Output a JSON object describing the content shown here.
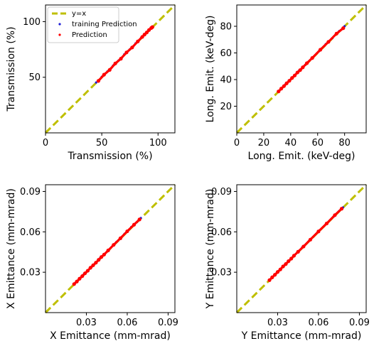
{
  "chart_data": [
    {
      "type": "scatter",
      "xlabel": "Transmission (%)",
      "ylabel": "Transmission (%)",
      "xlim": [
        0,
        115
      ],
      "ylim": [
        0,
        115
      ],
      "xticks": [
        0,
        50,
        100
      ],
      "yticks": [
        50,
        100
      ],
      "xtick_labels": [
        "0",
        "50",
        "100"
      ],
      "ytick_labels": [
        "50",
        "100"
      ],
      "grid": false,
      "legend": {
        "placement": "top-left",
        "entries": [
          "y=x",
          "training Prediction",
          "Prediction"
        ]
      },
      "reference_line": {
        "name": "y=x",
        "color": "#bfbf00",
        "style": "dashed"
      },
      "series": [
        {
          "name": "training Prediction",
          "color": "#1f1fd6",
          "x": [
            45,
            50,
            55,
            60,
            65,
            70,
            75,
            80,
            85,
            90,
            95
          ],
          "y": [
            45.3,
            50.4,
            55.2,
            60.5,
            65.1,
            70.6,
            75.2,
            80.4,
            85.5,
            90.2,
            95.3
          ]
        },
        {
          "name": "Prediction",
          "color": "#ff0000",
          "x": [
            47,
            52,
            57,
            62,
            67,
            72,
            77,
            82,
            86,
            88,
            90,
            92,
            94,
            95
          ],
          "y": [
            46.7,
            52.3,
            56.6,
            62.4,
            66.7,
            72.3,
            76.8,
            82.2,
            86.3,
            88.4,
            90.3,
            92.5,
            94.3,
            95.1
          ]
        }
      ]
    },
    {
      "type": "scatter",
      "xlabel": "Long. Emit. (keV-deg)",
      "ylabel": "Long. Emit. (keV-deg)",
      "xlim": [
        0,
        96
      ],
      "ylim": [
        0,
        96
      ],
      "xticks": [
        0,
        20,
        40,
        60,
        80
      ],
      "yticks": [
        20,
        40,
        60,
        80
      ],
      "xtick_labels": [
        "0",
        "20",
        "40",
        "60",
        "80"
      ],
      "ytick_labels": [
        "20",
        "40",
        "60",
        "80"
      ],
      "grid": false,
      "reference_line": {
        "name": "y=x",
        "color": "#bfbf00",
        "style": "dashed"
      },
      "series": [
        {
          "name": "training Prediction",
          "color": "#1f1fd6",
          "x": [
            31,
            36,
            41,
            46,
            51,
            56,
            61,
            66,
            71,
            76,
            80
          ],
          "y": [
            31.2,
            36.3,
            41.1,
            46.4,
            51.2,
            56.5,
            61.3,
            66.6,
            71.2,
            76.4,
            80.1
          ]
        },
        {
          "name": "Prediction",
          "color": "#ff0000",
          "x": [
            31,
            33,
            35,
            37,
            39,
            41,
            43,
            45,
            47,
            49,
            52,
            56,
            62,
            68,
            74,
            79
          ],
          "y": [
            31.1,
            33.2,
            35.1,
            37.2,
            39.1,
            41.2,
            43.1,
            45.3,
            47.1,
            49.2,
            52.3,
            56.2,
            62.4,
            68.3,
            74.5,
            78.6
          ]
        }
      ]
    },
    {
      "type": "scatter",
      "xlabel": "X Emittance (mm-mrad)",
      "ylabel": "X Emittance (mm-mrad)",
      "xlim": [
        0.0,
        0.095
      ],
      "ylim": [
        0.0,
        0.095
      ],
      "xticks": [
        0.03,
        0.06,
        0.09
      ],
      "yticks": [
        0.03,
        0.06,
        0.09
      ],
      "xtick_labels": [
        "0.03",
        "0.06",
        "0.09"
      ],
      "ytick_labels": [
        "0.03",
        "0.06",
        "0.09"
      ],
      "grid": false,
      "reference_line": {
        "name": "y=x",
        "color": "#bfbf00",
        "style": "dashed"
      },
      "series": [
        {
          "name": "training Prediction",
          "color": "#1f1fd6",
          "x": [
            0.022,
            0.028,
            0.034,
            0.04,
            0.046,
            0.052,
            0.058,
            0.063,
            0.067,
            0.07
          ],
          "y": [
            0.0222,
            0.0283,
            0.0342,
            0.0404,
            0.0463,
            0.0524,
            0.0585,
            0.0636,
            0.0672,
            0.0703
          ]
        },
        {
          "name": "Prediction",
          "color": "#ff0000",
          "x": [
            0.021,
            0.023,
            0.025,
            0.027,
            0.029,
            0.031,
            0.033,
            0.035,
            0.037,
            0.039,
            0.041,
            0.043,
            0.046,
            0.05,
            0.055,
            0.06,
            0.065,
            0.069
          ],
          "y": [
            0.0212,
            0.0231,
            0.0252,
            0.0271,
            0.0292,
            0.0311,
            0.0333,
            0.0352,
            0.0371,
            0.0392,
            0.0413,
            0.0431,
            0.0462,
            0.0503,
            0.0552,
            0.0604,
            0.0653,
            0.0692
          ]
        }
      ]
    },
    {
      "type": "scatter",
      "xlabel": "Y Emittance (mm-mrad)",
      "ylabel": "Y Emittance (mm-mrad)",
      "xlim": [
        0.0,
        0.095
      ],
      "ylim": [
        0.0,
        0.095
      ],
      "xticks": [
        0.03,
        0.06,
        0.09
      ],
      "yticks": [
        0.03,
        0.06,
        0.09
      ],
      "xtick_labels": [
        "0.03",
        "0.06",
        "0.09"
      ],
      "ytick_labels": [
        "0.03",
        "0.06",
        "0.09"
      ],
      "grid": false,
      "reference_line": {
        "name": "y=x",
        "color": "#bfbf00",
        "style": "dashed"
      },
      "series": [
        {
          "name": "training Prediction",
          "color": "#1f1fd6",
          "x": [
            0.024,
            0.03,
            0.036,
            0.042,
            0.048,
            0.054,
            0.06,
            0.066,
            0.071,
            0.075,
            0.078
          ],
          "y": [
            0.0242,
            0.0302,
            0.0363,
            0.0422,
            0.0484,
            0.0543,
            0.0602,
            0.0664,
            0.0712,
            0.0753,
            0.0781
          ]
        },
        {
          "name": "Prediction",
          "color": "#ff0000",
          "x": [
            0.024,
            0.026,
            0.028,
            0.03,
            0.032,
            0.034,
            0.036,
            0.038,
            0.04,
            0.042,
            0.045,
            0.049,
            0.054,
            0.06,
            0.066,
            0.072,
            0.077
          ],
          "y": [
            0.0241,
            0.0262,
            0.0281,
            0.0302,
            0.0321,
            0.0343,
            0.0361,
            0.0382,
            0.0401,
            0.0423,
            0.0452,
            0.0491,
            0.0542,
            0.0603,
            0.0662,
            0.0724,
            0.0772
          ]
        }
      ]
    }
  ]
}
